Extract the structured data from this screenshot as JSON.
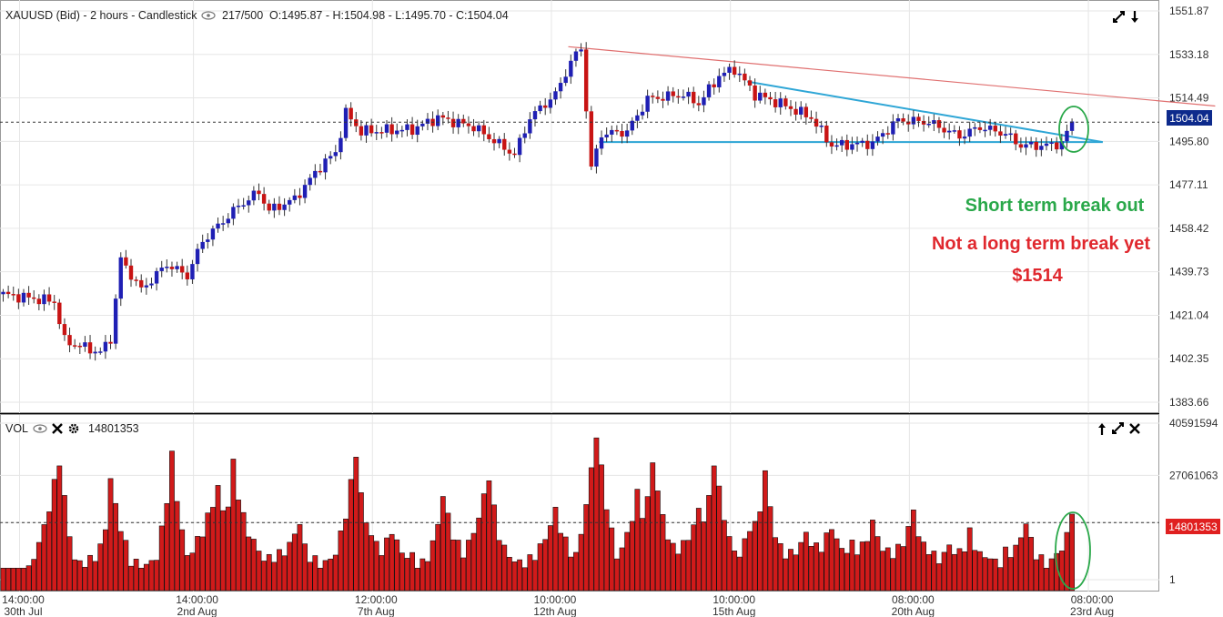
{
  "header": {
    "main_title": "XAUUSD (Bid) - 2 hours - Candlestick",
    "bars": "217/500",
    "ohlc": "O:1495.87 - H:1504.98 - L:1495.70 - C:1504.04",
    "price_badge": "1504.04",
    "vol_title": "VOL",
    "vol_value": "14801353",
    "vol_badge": "14801353"
  },
  "annotations": {
    "line1": "Short term break out",
    "line2": "Not a long term break yet",
    "line3": "$1514",
    "line1_color": "#2aa84a",
    "line2_color": "#e0282e"
  },
  "colors": {
    "bull": "#1f1fb4",
    "bear": "#c81414",
    "vol_bar": "#d11a1a",
    "trend_red": "#e07070",
    "trend_blue": "#2ea6d6",
    "ellipse": "#2aa84a",
    "badge_blue": "#0d2a8c",
    "badge_red": "#e02020"
  },
  "chart_data": [
    {
      "type": "candlestick",
      "title": "XAUUSD (Bid) - 2 hours - Candlestick",
      "y_ticks": [
        1551.87,
        1533.18,
        1514.49,
        1495.8,
        1477.11,
        1458.42,
        1439.73,
        1421.04,
        1402.35,
        1383.66
      ],
      "ylim": [
        1383.66,
        1551.87
      ],
      "x_ticks": [
        {
          "time": "14:00:00",
          "date": "30th Jul",
          "bar": 0
        },
        {
          "time": "14:00:00",
          "date": "2nd Aug",
          "bar": 34
        },
        {
          "time": "12:00:00",
          "date": "7th Aug",
          "bar": 69
        },
        {
          "time": "10:00:00",
          "date": "12th Aug",
          "bar": 104
        },
        {
          "time": "10:00:00",
          "date": "15th Aug",
          "bar": 139
        },
        {
          "time": "08:00:00",
          "date": "20th Aug",
          "bar": 174
        },
        {
          "time": "08:00:00",
          "date": "23rd Aug",
          "bar": 209
        }
      ],
      "current_price": 1504.04,
      "path": [
        [
          0,
          1430
        ],
        [
          10,
          1427
        ],
        [
          12,
          1410
        ],
        [
          19,
          1405
        ],
        [
          21,
          1411
        ],
        [
          23,
          1445
        ],
        [
          27,
          1432
        ],
        [
          32,
          1443
        ],
        [
          36,
          1438
        ],
        [
          39,
          1453
        ],
        [
          46,
          1468
        ],
        [
          50,
          1474
        ],
        [
          52,
          1466
        ],
        [
          57,
          1471
        ],
        [
          62,
          1485
        ],
        [
          65,
          1491
        ],
        [
          67,
          1508
        ],
        [
          70,
          1500
        ],
        [
          80,
          1501
        ],
        [
          85,
          1506
        ],
        [
          92,
          1502
        ],
        [
          100,
          1490
        ],
        [
          103,
          1506
        ],
        [
          108,
          1516
        ],
        [
          111,
          1530
        ],
        [
          113,
          1536
        ],
        [
          115,
          1484
        ],
        [
          117,
          1499
        ],
        [
          122,
          1500
        ],
        [
          126,
          1514
        ],
        [
          133,
          1516
        ],
        [
          136,
          1512
        ],
        [
          140,
          1524
        ],
        [
          143,
          1527
        ],
        [
          147,
          1516
        ],
        [
          152,
          1512
        ],
        [
          158,
          1506
        ],
        [
          162,
          1494
        ],
        [
          170,
          1495
        ],
        [
          175,
          1505
        ],
        [
          181,
          1504
        ],
        [
          187,
          1498
        ],
        [
          191,
          1502
        ],
        [
          196,
          1499
        ],
        [
          199,
          1494
        ],
        [
          204,
          1494
        ],
        [
          207,
          1495
        ],
        [
          209,
          1504
        ]
      ],
      "trendlines": [
        {
          "color": "trend_red",
          "from": [
            110.5,
            1536.5
          ],
          "to": [
            237,
            1511
          ]
        },
        {
          "color": "trend_blue",
          "from": [
            145.5,
            1521.5
          ],
          "to": [
            215,
            1495.5
          ]
        },
        {
          "color": "trend_blue",
          "from": [
            116.5,
            1495.5
          ],
          "to": [
            215,
            1495.5
          ]
        }
      ]
    },
    {
      "type": "bar",
      "title": "VOL",
      "y_ticks": [
        40591594,
        27061063,
        14801353,
        1
      ],
      "ylim": [
        1,
        40591594
      ],
      "current_value": 14801353,
      "peaks": [
        [
          6,
          6
        ],
        [
          11,
          31
        ],
        [
          14,
          5
        ],
        [
          19,
          8
        ],
        [
          21,
          26
        ],
        [
          25,
          5
        ],
        [
          30,
          6
        ],
        [
          33,
          32
        ],
        [
          36,
          6
        ],
        [
          42,
          24
        ],
        [
          45,
          30
        ],
        [
          49,
          10
        ],
        [
          53,
          6
        ],
        [
          58,
          15
        ],
        [
          60,
          6
        ],
        [
          65,
          7
        ],
        [
          69,
          33
        ],
        [
          72,
          12
        ],
        [
          76,
          13
        ],
        [
          80,
          6
        ],
        [
          83,
          6
        ],
        [
          86,
          22
        ],
        [
          90,
          7
        ],
        [
          95,
          27
        ],
        [
          98,
          8
        ],
        [
          103,
          5
        ],
        [
          108,
          18
        ],
        [
          112,
          6
        ],
        [
          116,
          38
        ],
        [
          120,
          6
        ],
        [
          124,
          22
        ],
        [
          127,
          31
        ],
        [
          131,
          8
        ],
        [
          136,
          18
        ],
        [
          139,
          31
        ],
        [
          143,
          7
        ],
        [
          146,
          14
        ],
        [
          149,
          28
        ],
        [
          152,
          8
        ],
        [
          157,
          12
        ],
        [
          162,
          14
        ],
        [
          166,
          9
        ],
        [
          170,
          15
        ],
        [
          174,
          7
        ],
        [
          178,
          18
        ],
        [
          181,
          8
        ],
        [
          185,
          9
        ],
        [
          189,
          12
        ],
        [
          193,
          6
        ],
        [
          196,
          7
        ],
        [
          200,
          15
        ],
        [
          203,
          5
        ],
        [
          206,
          7
        ],
        [
          209,
          17
        ]
      ]
    }
  ]
}
